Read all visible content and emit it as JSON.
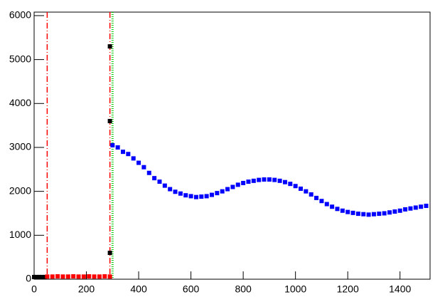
{
  "chart_data": {
    "type": "scatter",
    "xlim": [
      0,
      1515
    ],
    "ylim": [
      0,
      6080
    ],
    "xticks": [
      0,
      200,
      400,
      600,
      800,
      1000,
      1200,
      1400
    ],
    "yticks": [
      0,
      1000,
      2000,
      3000,
      4000,
      5000,
      6000
    ],
    "grid": false,
    "series": [
      {
        "color": "#000000",
        "x": [
          0,
          10,
          20,
          30,
          40,
          290,
          290,
          290
        ],
        "y": [
          50,
          50,
          50,
          50,
          50,
          5300,
          3600,
          600
        ]
      },
      {
        "color": "#ff0000",
        "x": [
          50,
          70,
          90,
          110,
          130,
          150,
          170,
          190,
          210,
          230,
          250,
          270,
          290
        ],
        "y": [
          60,
          60,
          65,
          60,
          60,
          65,
          60,
          60,
          65,
          60,
          60,
          65,
          60
        ]
      },
      {
        "color": "#0000ff",
        "x": [
          300,
          320,
          340,
          360,
          380,
          400,
          420,
          440,
          460,
          480,
          500,
          520,
          540,
          560,
          580,
          600,
          620,
          640,
          660,
          680,
          700,
          720,
          740,
          760,
          780,
          800,
          820,
          840,
          860,
          880,
          900,
          920,
          940,
          960,
          980,
          1000,
          1020,
          1040,
          1060,
          1080,
          1100,
          1120,
          1140,
          1160,
          1180,
          1200,
          1220,
          1240,
          1260,
          1280,
          1300,
          1320,
          1340,
          1360,
          1380,
          1400,
          1420,
          1440,
          1460,
          1480,
          1500
        ],
        "y": [
          3050,
          3000,
          2900,
          2850,
          2750,
          2650,
          2550,
          2420,
          2300,
          2220,
          2130,
          2050,
          1990,
          1950,
          1910,
          1890,
          1870,
          1880,
          1890,
          1920,
          1960,
          2000,
          2050,
          2100,
          2150,
          2190,
          2220,
          2240,
          2260,
          2270,
          2270,
          2260,
          2240,
          2210,
          2170,
          2120,
          2060,
          2000,
          1930,
          1850,
          1780,
          1710,
          1650,
          1600,
          1560,
          1530,
          1510,
          1490,
          1480,
          1470,
          1480,
          1490,
          1500,
          1520,
          1540,
          1560,
          1590,
          1610,
          1630,
          1650,
          1670
        ]
      }
    ],
    "vlines": [
      {
        "x": 50,
        "color": "#ff0000",
        "style": "dashdot"
      },
      {
        "x": 290,
        "color": "#ff0000",
        "style": "dashdot"
      },
      {
        "x": 298,
        "color": "#00cc00",
        "style": "dotted"
      },
      {
        "x": 302,
        "color": "#00cc00",
        "style": "dotted"
      }
    ]
  }
}
